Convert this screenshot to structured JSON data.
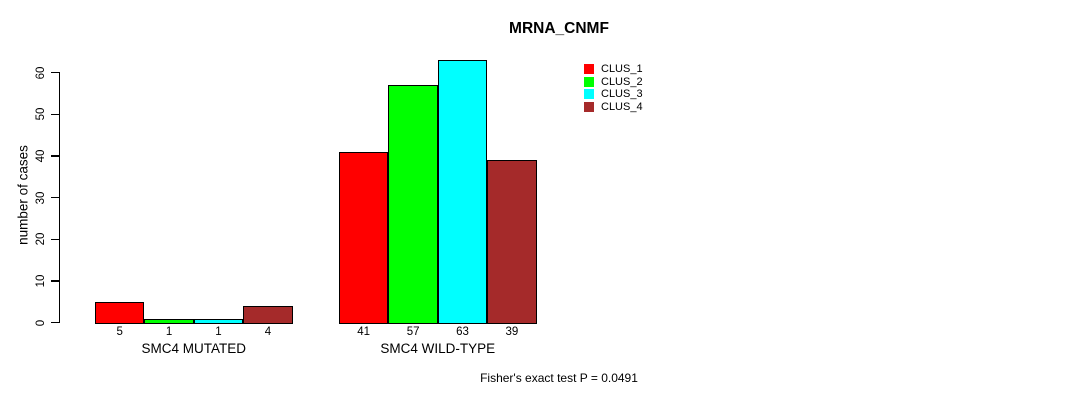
{
  "title": "MRNA_CNMF",
  "chart_data": {
    "type": "bar",
    "title": "MRNA_CNMF",
    "ylabel": "number of cases",
    "xlabel": "",
    "categories": [
      "SMC4 MUTATED",
      "SMC4 WILD-TYPE"
    ],
    "series": [
      {
        "name": "CLUS_1",
        "color": "#ff0000",
        "values": [
          5,
          41
        ]
      },
      {
        "name": "CLUS_2",
        "color": "#00ff00",
        "values": [
          1,
          57
        ]
      },
      {
        "name": "CLUS_3",
        "color": "#00ffff",
        "values": [
          1,
          63
        ]
      },
      {
        "name": "CLUS_4",
        "color": "#a52a2a",
        "values": [
          4,
          39
        ]
      }
    ],
    "yticks": [
      0,
      10,
      20,
      30,
      40,
      50,
      60
    ],
    "ylim": [
      0,
      63
    ],
    "grid": false,
    "legend_position": "top-right-inside",
    "legend_entries": [
      "CLUS_1",
      "CLUS_2",
      "CLUS_3",
      "CLUS_4"
    ],
    "bar_value_labels_shown": true,
    "annotation": "Fisher's exact test P = 0.0491"
  },
  "colors": {
    "clus_1": "#ff0000",
    "clus_2": "#00ff00",
    "clus_3": "#00ffff",
    "clus_4": "#a52a2a",
    "axis": "#000000",
    "background": "#ffffff"
  }
}
